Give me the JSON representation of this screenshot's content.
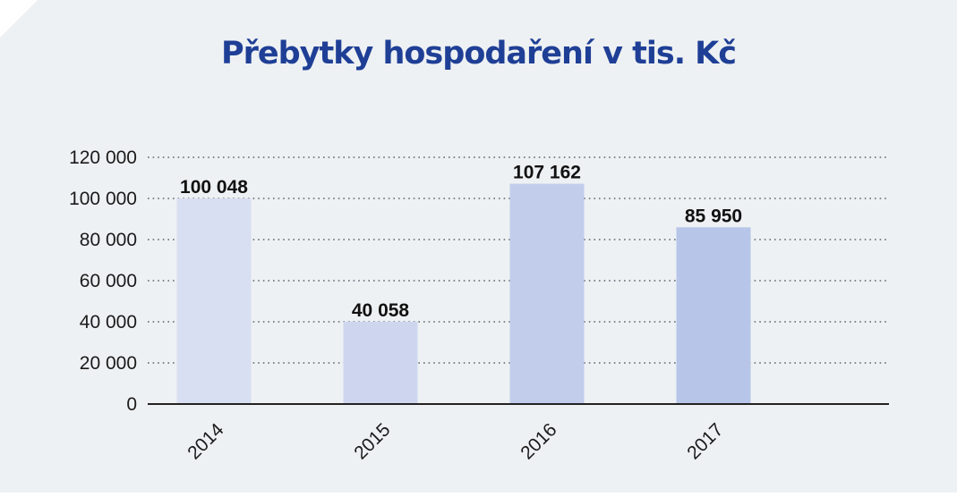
{
  "chart_data": {
    "type": "bar",
    "title": "Přebytky hospodaření v tis. Kč",
    "xlabel": "",
    "ylabel": "",
    "categories": [
      "2014",
      "2015",
      "2016",
      "2017"
    ],
    "values": [
      100048,
      40058,
      107162,
      85950
    ],
    "data_labels": [
      "100 048",
      "40 058",
      "107 162",
      "85 950"
    ],
    "ylim": [
      0,
      120000
    ],
    "yticks": [
      0,
      20000,
      40000,
      60000,
      80000,
      100000,
      120000
    ],
    "ytick_labels": [
      "0",
      "20 000",
      "40 000",
      "60 000",
      "80 000",
      "100 000",
      "120 000"
    ],
    "grid": true,
    "legend": "none",
    "bar_colors": [
      "#d9dff2",
      "#ced6ef",
      "#c2cdec",
      "#b7c5e8"
    ],
    "title_color": "#1f3f96",
    "background_color": "#eef1f3"
  }
}
